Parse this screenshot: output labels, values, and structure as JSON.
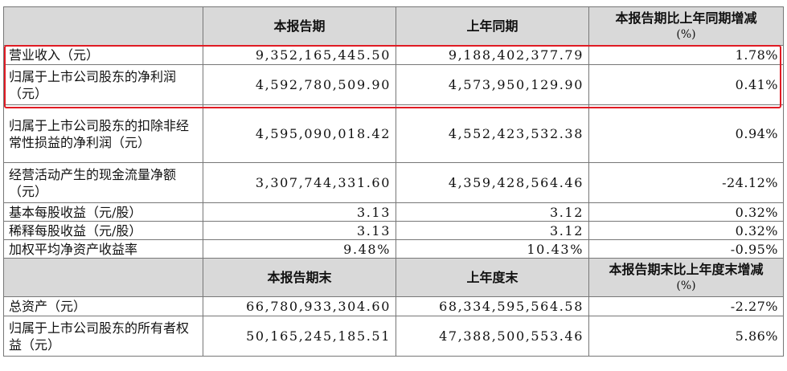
{
  "top_partial_text": "",
  "headers_1": {
    "col1": "",
    "col2": "本报告期",
    "col3": "上年同期",
    "col4": "本报告期比上年同期增减",
    "col4_unit": "(%)"
  },
  "rows_1": [
    {
      "label": "营业收入（元）",
      "current": "9,352,165,445.50",
      "prior": "9,188,402,377.79",
      "change": "1.78%"
    },
    {
      "label": "归属于上市公司股东的净利润（元）",
      "current": "4,592,780,509.90",
      "prior": "4,573,950,129.90",
      "change": "0.41%"
    },
    {
      "label": "归属于上市公司股东的扣除非经常性损益的净利润（元）",
      "current": "4,595,090,018.42",
      "prior": "4,552,423,532.38",
      "change": "0.94%"
    },
    {
      "label": "经营活动产生的现金流量净额（元）",
      "current": "3,307,744,331.60",
      "prior": "4,359,428,564.46",
      "change": "-24.12%"
    },
    {
      "label": "基本每股收益（元/股）",
      "current": "3.13",
      "prior": "3.12",
      "change": "0.32%"
    },
    {
      "label": "稀释每股收益（元/股）",
      "current": "3.13",
      "prior": "3.12",
      "change": "0.32%"
    },
    {
      "label": "加权平均净资产收益率",
      "current": "9.48%",
      "prior": "10.43%",
      "change": "-0.95%"
    }
  ],
  "headers_2": {
    "col1": "",
    "col2": "本报告期末",
    "col3": "上年度末",
    "col4": "本报告期末比上年度末增减",
    "col4_unit": "(%)"
  },
  "rows_2": [
    {
      "label": "总资产（元）",
      "current": "66,780,933,304.60",
      "prior": "68,334,595,564.58",
      "change": "-2.27%"
    },
    {
      "label": "归属于上市公司股东的所有者权益（元）",
      "current": "50,165,245,185.51",
      "prior": "47,388,500,553.46",
      "change": "5.86%"
    }
  ],
  "highlight_color": "#e01b24",
  "header_bg": "#d9d9d9"
}
